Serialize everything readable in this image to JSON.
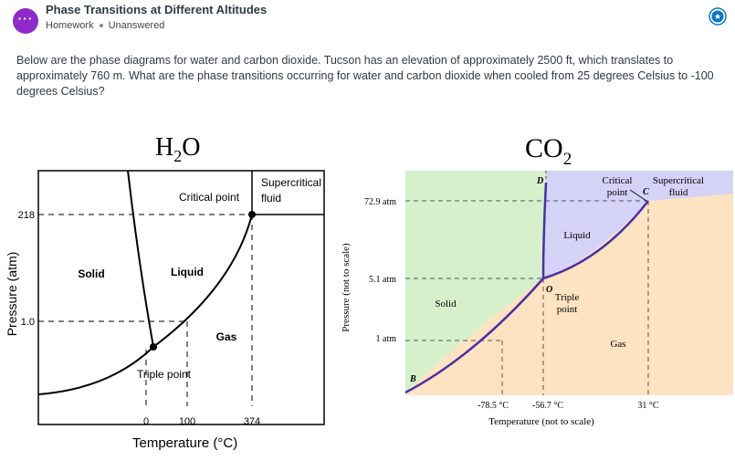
{
  "header": {
    "title": "Phase Transitions at Different Altitudes",
    "type": "Homework",
    "status": "Unanswered",
    "app_icon": "ellipsis-icon",
    "status_icon": "unanswered-circle-icon"
  },
  "question": "Below are the phase diagrams for water and carbon dioxide. Tucson has an elevation of approximately 2500 ft, which translates to approximately 760 m. What are the phase transitions occurring for water and carbon dioxide when cooled from 25 degrees Celsius to -100 degrees Celsius?",
  "water": {
    "title_main": "H",
    "title_sub": "2",
    "title_end": "O",
    "ylabel": "Pressure (atm)",
    "xlabel": "Temperature (°C)",
    "y_tick_high": "218",
    "y_tick_low": "1.0",
    "x_ticks": [
      "0",
      "100",
      "374"
    ],
    "regions": {
      "solid": "Solid",
      "liquid": "Liquid",
      "gas": "Gas",
      "supercritical_1": "Supercritical",
      "supercritical_2": "fluid"
    },
    "critical_point": "Critical point",
    "triple_point": "Triple point"
  },
  "co2": {
    "title_main": "CO",
    "title_sub": "2",
    "ylabel": "Pressure (not to scale)",
    "xlabel": "Temperature (not to scale)",
    "y_ticks": [
      "72.9 atm",
      "5.1 atm",
      "1 atm"
    ],
    "x_ticks": [
      "-78.5 °C",
      "-56.7 °C",
      "31 °C"
    ],
    "regions": {
      "solid": "Solid",
      "liquid": "Liquid",
      "gas": "Gas",
      "supercritical_1": "Supercritical",
      "supercritical_2": "fluid"
    },
    "critical_1": "Critical",
    "critical_2": "point",
    "triple_1": "Triple",
    "triple_2": "point",
    "point_b": "B",
    "point_c": "C",
    "point_d": "D",
    "point_o": "O"
  },
  "colors": {
    "solid_fill": "#d6f0cc",
    "liquid_fill": "#d4d2f7",
    "gas_fill": "#fde3c2",
    "co2_curve": "#4b2fa3",
    "accent": "#0a74ca"
  }
}
